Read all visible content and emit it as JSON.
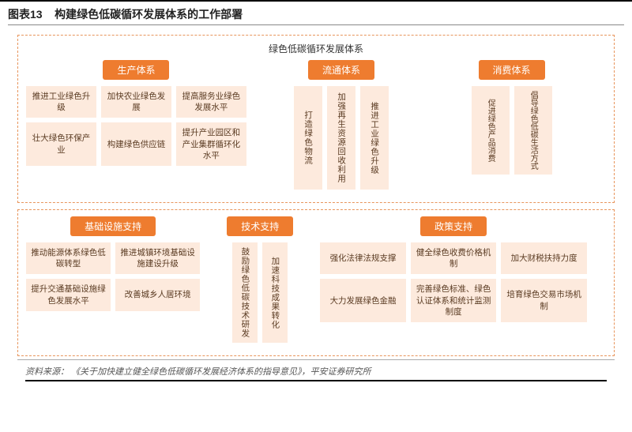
{
  "colors": {
    "accent": "#ee7c2f",
    "box_bg": "#fdeadd",
    "box_text": "#5a3b22",
    "dash_border": "#e8955c",
    "header_rule": "#000000"
  },
  "header": {
    "fig_label": "图表13",
    "title": "构建绿色低碳循环发展体系的工作部署"
  },
  "root": {
    "title": "绿色低碳循环发展体系"
  },
  "top": {
    "production": {
      "pill": "生产体系",
      "row1": [
        "推进工业绿色升级",
        "加快农业绿色发展",
        "提高服务业绿色发展水平"
      ],
      "row2": [
        "壮大绿色环保产业",
        "构建绿色供应链",
        "提升产业园区和产业集群循环化水平"
      ]
    },
    "circulation": {
      "pill": "流通体系",
      "items": [
        "打造绿色物流",
        "加强再生资源回收利用",
        "推进工业绿色升级"
      ]
    },
    "consumption": {
      "pill": "消费体系",
      "items": [
        "促进绿色产品消费",
        "倡导绿色低碳生活方式"
      ]
    }
  },
  "bottom": {
    "infra": {
      "pill": "基础设施支持",
      "row1": [
        "推动能源体系绿色低碳转型",
        "推进城镇环境基础设施建设升级"
      ],
      "row2": [
        "提升交通基础设施绿色发展水平",
        "改善城乡人居环境"
      ]
    },
    "tech": {
      "pill": "技术支持",
      "items": [
        "鼓励绿色低碳技术研发",
        "加速科技成果转化"
      ]
    },
    "policy": {
      "pill": "政策支持",
      "row1": [
        "强化法律法规支撑",
        "健全绿色收费价格机制",
        "加大财税扶持力度"
      ],
      "row2": [
        "大力发展绿色金融",
        "完善绿色标准、绿色认证体系和统计监测制度",
        "培育绿色交易市场机制"
      ]
    }
  },
  "source": {
    "label": "资料来源：",
    "text": "《关于加快建立健全绿色低碳循环发展经济体系的指导意见》，平安证券研究所"
  }
}
